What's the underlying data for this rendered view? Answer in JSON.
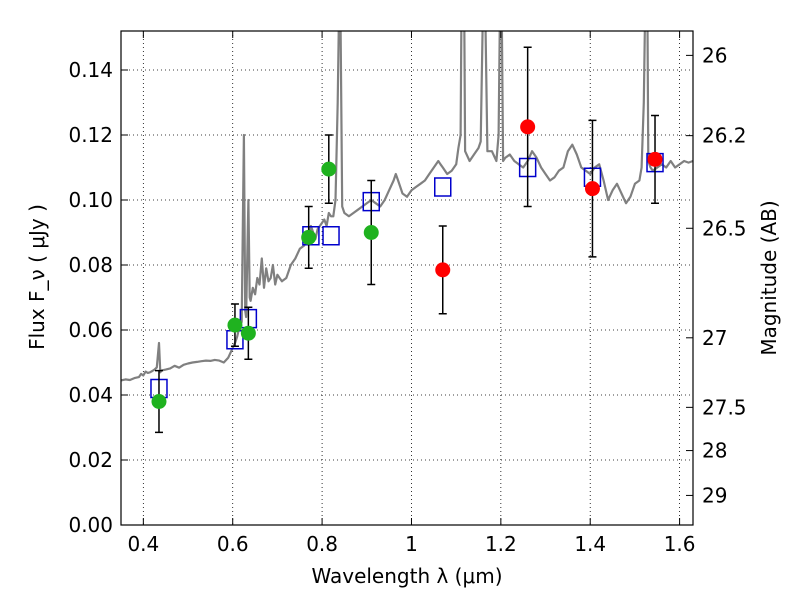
{
  "chart_data": {
    "type": "scatter",
    "xlabel": "Wavelength  λ (μm)",
    "ylabel": "Flux  F_ν  ( μJy )",
    "y2label": "Magnitude (AB)",
    "xlim": [
      0.35,
      1.63
    ],
    "ylim": [
      0.0,
      0.152
    ],
    "grid": true,
    "x_ticks": [
      0.4,
      0.6,
      0.8,
      1.0,
      1.2,
      1.4,
      1.6
    ],
    "x_tick_labels": [
      "0.4",
      "0.6",
      "0.8",
      "1",
      "1.2",
      "1.4",
      "1.6"
    ],
    "y_ticks": [
      0.0,
      0.02,
      0.04,
      0.06,
      0.08,
      0.1,
      0.12,
      0.14
    ],
    "y_tick_labels": [
      "0.00",
      "0.02",
      "0.04",
      "0.06",
      "0.08",
      "0.10",
      "0.12",
      "0.14"
    ],
    "y2_ticks": [
      {
        "flux": 0.1445,
        "label": "26"
      },
      {
        "flux": 0.1198,
        "label": "26.2"
      },
      {
        "flux": 0.0913,
        "label": "26.5"
      },
      {
        "flux": 0.0576,
        "label": "27"
      },
      {
        "flux": 0.0362,
        "label": "27.5"
      },
      {
        "flux": 0.0229,
        "label": "28"
      },
      {
        "flux": 0.0091,
        "label": "29"
      }
    ],
    "series": [
      {
        "marker": "line",
        "color": "#808080",
        "points": [
          [
            0.35,
            0.0445
          ],
          [
            0.36,
            0.0448
          ],
          [
            0.37,
            0.0446
          ],
          [
            0.38,
            0.0452
          ],
          [
            0.39,
            0.0455
          ],
          [
            0.395,
            0.0465
          ],
          [
            0.4,
            0.046
          ],
          [
            0.405,
            0.0472
          ],
          [
            0.41,
            0.0468
          ],
          [
            0.415,
            0.047
          ],
          [
            0.42,
            0.0474
          ],
          [
            0.425,
            0.0478
          ],
          [
            0.43,
            0.0485
          ],
          [
            0.435,
            0.056
          ],
          [
            0.438,
            0.047
          ],
          [
            0.44,
            0.0475
          ],
          [
            0.45,
            0.0478
          ],
          [
            0.46,
            0.0482
          ],
          [
            0.47,
            0.049
          ],
          [
            0.48,
            0.0484
          ],
          [
            0.49,
            0.0493
          ],
          [
            0.5,
            0.0497
          ],
          [
            0.51,
            0.05
          ],
          [
            0.52,
            0.0502
          ],
          [
            0.53,
            0.0504
          ],
          [
            0.54,
            0.0506
          ],
          [
            0.55,
            0.0505
          ],
          [
            0.56,
            0.0508
          ],
          [
            0.57,
            0.0506
          ],
          [
            0.58,
            0.05
          ],
          [
            0.59,
            0.0515
          ],
          [
            0.6,
            0.0545
          ],
          [
            0.605,
            0.056
          ],
          [
            0.61,
            0.058
          ],
          [
            0.615,
            0.061
          ],
          [
            0.62,
            0.0625
          ],
          [
            0.625,
            0.12
          ],
          [
            0.628,
            0.066
          ],
          [
            0.63,
            0.064
          ],
          [
            0.635,
            0.1
          ],
          [
            0.638,
            0.07
          ],
          [
            0.64,
            0.069
          ],
          [
            0.645,
            0.073
          ],
          [
            0.65,
            0.071
          ],
          [
            0.655,
            0.076
          ],
          [
            0.66,
            0.074
          ],
          [
            0.665,
            0.082
          ],
          [
            0.67,
            0.073
          ],
          [
            0.675,
            0.079
          ],
          [
            0.68,
            0.075
          ],
          [
            0.685,
            0.076
          ],
          [
            0.69,
            0.08
          ],
          [
            0.695,
            0.074
          ],
          [
            0.7,
            0.077
          ],
          [
            0.705,
            0.076
          ],
          [
            0.71,
            0.075
          ],
          [
            0.72,
            0.076
          ],
          [
            0.73,
            0.08
          ],
          [
            0.74,
            0.082
          ],
          [
            0.75,
            0.085
          ],
          [
            0.76,
            0.086
          ],
          [
            0.77,
            0.089
          ],
          [
            0.775,
            0.092
          ],
          [
            0.78,
            0.09
          ],
          [
            0.785,
            0.088
          ],
          [
            0.79,
            0.091
          ],
          [
            0.8,
            0.093
          ],
          [
            0.805,
            0.094
          ],
          [
            0.81,
            0.092
          ],
          [
            0.815,
            0.096
          ],
          [
            0.82,
            0.095
          ],
          [
            0.825,
            0.095
          ],
          [
            0.83,
            0.1
          ],
          [
            0.835,
            0.13
          ],
          [
            0.838,
            0.16
          ],
          [
            0.841,
            0.16
          ],
          [
            0.845,
            0.098
          ],
          [
            0.85,
            0.096
          ],
          [
            0.86,
            0.095
          ],
          [
            0.87,
            0.096
          ],
          [
            0.88,
            0.097
          ],
          [
            0.89,
            0.098
          ],
          [
            0.9,
            0.099
          ],
          [
            0.91,
            0.1
          ],
          [
            0.92,
            0.099
          ],
          [
            0.93,
            0.098
          ],
          [
            0.94,
            0.1
          ],
          [
            0.95,
            0.103
          ],
          [
            0.96,
            0.106
          ],
          [
            0.965,
            0.108
          ],
          [
            0.97,
            0.106
          ],
          [
            0.98,
            0.102
          ],
          [
            0.99,
            0.101
          ],
          [
            1.0,
            0.103
          ],
          [
            1.01,
            0.104
          ],
          [
            1.02,
            0.105
          ],
          [
            1.03,
            0.106
          ],
          [
            1.04,
            0.108
          ],
          [
            1.05,
            0.11
          ],
          [
            1.06,
            0.112
          ],
          [
            1.065,
            0.111
          ],
          [
            1.07,
            0.11
          ],
          [
            1.08,
            0.108
          ],
          [
            1.09,
            0.109
          ],
          [
            1.1,
            0.111
          ],
          [
            1.105,
            0.116
          ],
          [
            1.11,
            0.12
          ],
          [
            1.112,
            0.16
          ],
          [
            1.118,
            0.16
          ],
          [
            1.12,
            0.115
          ],
          [
            1.13,
            0.112
          ],
          [
            1.14,
            0.114
          ],
          [
            1.15,
            0.116
          ],
          [
            1.155,
            0.118
          ],
          [
            1.16,
            0.16
          ],
          [
            1.165,
            0.16
          ],
          [
            1.17,
            0.115
          ],
          [
            1.18,
            0.115
          ],
          [
            1.19,
            0.112
          ],
          [
            1.195,
            0.12
          ],
          [
            1.198,
            0.16
          ],
          [
            1.202,
            0.16
          ],
          [
            1.205,
            0.112
          ],
          [
            1.21,
            0.113
          ],
          [
            1.22,
            0.114
          ],
          [
            1.23,
            0.112
          ],
          [
            1.24,
            0.111
          ],
          [
            1.25,
            0.11
          ],
          [
            1.26,
            0.112
          ],
          [
            1.27,
            0.115
          ],
          [
            1.28,
            0.113
          ],
          [
            1.29,
            0.11
          ],
          [
            1.3,
            0.108
          ],
          [
            1.31,
            0.106
          ],
          [
            1.32,
            0.107
          ],
          [
            1.33,
            0.109
          ],
          [
            1.34,
            0.11
          ],
          [
            1.35,
            0.115
          ],
          [
            1.36,
            0.117
          ],
          [
            1.37,
            0.114
          ],
          [
            1.38,
            0.11
          ],
          [
            1.39,
            0.109
          ],
          [
            1.4,
            0.108
          ],
          [
            1.41,
            0.11
          ],
          [
            1.42,
            0.111
          ],
          [
            1.43,
            0.106
          ],
          [
            1.44,
            0.1
          ],
          [
            1.45,
            0.103
          ],
          [
            1.46,
            0.105
          ],
          [
            1.47,
            0.102
          ],
          [
            1.48,
            0.099
          ],
          [
            1.49,
            0.101
          ],
          [
            1.5,
            0.105
          ],
          [
            1.51,
            0.106
          ],
          [
            1.515,
            0.11
          ],
          [
            1.52,
            0.13
          ],
          [
            1.523,
            0.16
          ],
          [
            1.528,
            0.16
          ],
          [
            1.53,
            0.112
          ],
          [
            1.535,
            0.11
          ],
          [
            1.54,
            0.109
          ],
          [
            1.55,
            0.11
          ],
          [
            1.56,
            0.111
          ],
          [
            1.57,
            0.11
          ],
          [
            1.58,
            0.112
          ],
          [
            1.59,
            0.11
          ],
          [
            1.6,
            0.111
          ],
          [
            1.61,
            0.112
          ],
          [
            1.62,
            0.1115
          ],
          [
            1.63,
            0.112
          ]
        ]
      },
      {
        "marker": "square",
        "color": "#0000cc",
        "points": [
          {
            "x": 0.435,
            "y": 0.042
          },
          {
            "x": 0.605,
            "y": 0.057
          },
          {
            "x": 0.635,
            "y": 0.0635
          },
          {
            "x": 0.775,
            "y": 0.089
          },
          {
            "x": 0.82,
            "y": 0.089
          },
          {
            "x": 0.91,
            "y": 0.0995
          },
          {
            "x": 1.07,
            "y": 0.104
          },
          {
            "x": 1.26,
            "y": 0.11
          },
          {
            "x": 1.405,
            "y": 0.107
          },
          {
            "x": 1.545,
            "y": 0.1115
          }
        ]
      },
      {
        "marker": "circle",
        "color": "#1fb21f",
        "points": [
          {
            "x": 0.435,
            "y": 0.038,
            "yerr": 0.0095
          },
          {
            "x": 0.605,
            "y": 0.0615,
            "yerr": 0.0065
          },
          {
            "x": 0.635,
            "y": 0.059,
            "yerr": 0.008
          },
          {
            "x": 0.77,
            "y": 0.0885,
            "yerr": 0.0095
          },
          {
            "x": 0.815,
            "y": 0.1095,
            "yerr": 0.0105
          },
          {
            "x": 0.91,
            "y": 0.09,
            "yerr": 0.016
          }
        ]
      },
      {
        "marker": "circle",
        "color": "#ff0000",
        "points": [
          {
            "x": 1.07,
            "y": 0.0785,
            "yerr": 0.0135
          },
          {
            "x": 1.26,
            "y": 0.1225,
            "yerr": 0.0245
          },
          {
            "x": 1.405,
            "y": 0.1035,
            "yerr": 0.021
          },
          {
            "x": 1.545,
            "y": 0.1125,
            "yerr": 0.0135
          }
        ]
      }
    ]
  }
}
